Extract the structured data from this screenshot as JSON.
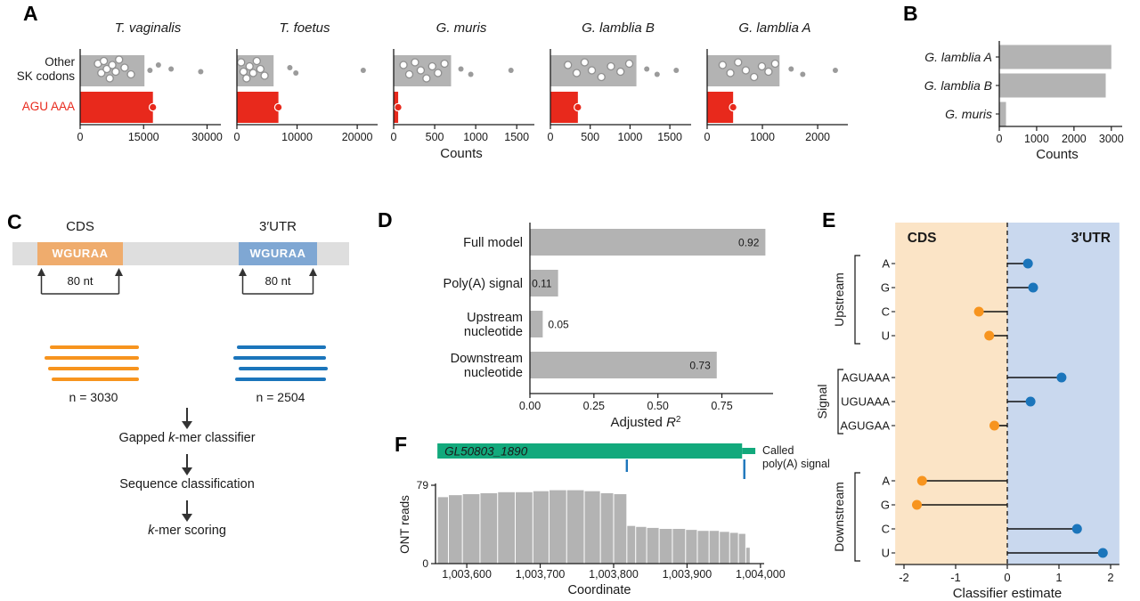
{
  "panel_labels": {
    "a": "A",
    "b": "B",
    "c": "C",
    "d": "D",
    "e": "E",
    "f": "F"
  },
  "colors": {
    "red": "#E8291C",
    "gray_bar": "#B3B3B3",
    "green_species": "#00A651",
    "blue": "#1B75BB",
    "orange": "#F7941E",
    "orange_bg": "#FBE4C6",
    "blue_bg": "#C9D8EE",
    "gene_green": "#12A97C",
    "axis": "#1a1a1a",
    "point_gray": "#9b9b9b"
  },
  "panel_c": {
    "cds_label": "CDS",
    "utr_label": "3′UTR",
    "motif": "WGURAA",
    "dim_label": "80 nt",
    "n_cds": "n = 3030",
    "n_utr": "n = 2504",
    "steps": [
      {
        "pre": "Gapped ",
        "it": "k",
        "post": "-mer classifier"
      },
      {
        "pre": "",
        "it": "",
        "post": "Sequence classification"
      },
      {
        "pre": "",
        "it": "k",
        "post": "-mer scoring"
      }
    ]
  },
  "chart_data": [
    {
      "panel": "A",
      "type": "bar",
      "description": "Counts of AGU AAA vs other SK codons per species; bars with jittered codon points",
      "xlabel": "Counts",
      "row_label_line1": "Other",
      "row_label_line2": "SK codons",
      "row_label_red": "AGU AAA",
      "species": [
        {
          "name": "T. vaginalis",
          "group": "green",
          "xmax": 32000,
          "xticks": [
            0,
            15000,
            30000
          ],
          "other_sk_total": 15200,
          "agu_aaa": 17200,
          "open_points": [
            [
              4200,
              0.25
            ],
            [
              5000,
              0.6
            ],
            [
              5600,
              0.15
            ],
            [
              6300,
              0.45
            ],
            [
              7000,
              0.8
            ],
            [
              7600,
              0.3
            ],
            [
              8400,
              0.55
            ],
            [
              9200,
              0.1
            ],
            [
              10500,
              0.4
            ],
            [
              12000,
              0.65
            ]
          ],
          "solid_points": [
            [
              16500,
              0.5
            ],
            [
              18500,
              0.3
            ],
            [
              21500,
              0.45
            ],
            [
              28500,
              0.55
            ]
          ]
        },
        {
          "name": "T. foetus",
          "group": "green",
          "xmax": 22500,
          "xticks": [
            0,
            10000,
            20000
          ],
          "other_sk_total": 6100,
          "agu_aaa": 6900,
          "open_points": [
            [
              700,
              0.2
            ],
            [
              1100,
              0.55
            ],
            [
              1600,
              0.8
            ],
            [
              2100,
              0.35
            ],
            [
              2700,
              0.6
            ],
            [
              3300,
              0.15
            ],
            [
              3900,
              0.45
            ],
            [
              4600,
              0.7
            ]
          ],
          "solid_points": [
            [
              8800,
              0.4
            ],
            [
              9800,
              0.6
            ],
            [
              21000,
              0.5
            ]
          ]
        },
        {
          "name": "G. muris",
          "group": "blue",
          "xmax": 1650,
          "xticks": [
            0,
            500,
            1000,
            1500
          ],
          "other_sk_total": 700,
          "agu_aaa": 55,
          "open_points": [
            [
              120,
              0.3
            ],
            [
              190,
              0.65
            ],
            [
              260,
              0.2
            ],
            [
              330,
              0.5
            ],
            [
              400,
              0.8
            ],
            [
              470,
              0.35
            ],
            [
              540,
              0.6
            ],
            [
              620,
              0.25
            ]
          ],
          "solid_points": [
            [
              820,
              0.45
            ],
            [
              940,
              0.65
            ],
            [
              1430,
              0.5
            ]
          ]
        },
        {
          "name": "G. lamblia B",
          "group": "blue",
          "xmax": 1700,
          "xticks": [
            0,
            500,
            1000,
            1500
          ],
          "other_sk_total": 1080,
          "agu_aaa": 345,
          "open_points": [
            [
              220,
              0.3
            ],
            [
              330,
              0.6
            ],
            [
              430,
              0.2
            ],
            [
              520,
              0.5
            ],
            [
              640,
              0.75
            ],
            [
              760,
              0.35
            ],
            [
              880,
              0.55
            ],
            [
              990,
              0.25
            ]
          ],
          "solid_points": [
            [
              1210,
              0.45
            ],
            [
              1340,
              0.65
            ],
            [
              1580,
              0.5
            ]
          ]
        },
        {
          "name": "G. lamblia A",
          "group": "blue",
          "xmax": 2450,
          "xticks": [
            0,
            1000,
            2000
          ],
          "other_sk_total": 1310,
          "agu_aaa": 470,
          "open_points": [
            [
              280,
              0.3
            ],
            [
              420,
              0.6
            ],
            [
              560,
              0.2
            ],
            [
              700,
              0.5
            ],
            [
              850,
              0.75
            ],
            [
              990,
              0.35
            ],
            [
              1110,
              0.55
            ],
            [
              1230,
              0.25
            ]
          ],
          "solid_points": [
            [
              1520,
              0.45
            ],
            [
              1730,
              0.65
            ],
            [
              2320,
              0.5
            ]
          ]
        }
      ]
    },
    {
      "panel": "B",
      "type": "bar",
      "categories": [
        "G. lamblia A",
        "G. lamblia B",
        "G. muris"
      ],
      "values": [
        3000,
        2850,
        180
      ],
      "xticks": [
        0,
        1000,
        2000,
        3000
      ],
      "xmax": 3100,
      "xlabel": "Counts"
    },
    {
      "panel": "D",
      "type": "bar",
      "categories": [
        "Full model",
        "Poly(A) signal",
        "Upstream nucleotide",
        "Downstream nucleotide"
      ],
      "category_lines": [
        [
          "Full model"
        ],
        [
          "Poly(A) signal"
        ],
        [
          "Upstream",
          "nucleotide"
        ],
        [
          "Downstream",
          "nucleotide"
        ]
      ],
      "values": [
        0.92,
        0.11,
        0.05,
        0.73
      ],
      "value_labels": [
        "0.92",
        "0.11",
        "0.05",
        "0.73"
      ],
      "label_inside": [
        true,
        true,
        false,
        true
      ],
      "xticks": [
        0,
        0.25,
        0.5,
        0.75
      ],
      "xtick_labels": [
        "0.00",
        "0.25",
        "0.50",
        "0.75"
      ],
      "xmax": 0.95,
      "xlabel_pre": "Adjusted ",
      "xlabel_italic": "R",
      "xlabel_sup": "2"
    },
    {
      "panel": "E",
      "type": "lollipop",
      "xlabel": "Classifier estimate",
      "xticks": [
        -2,
        -1,
        0,
        1,
        2
      ],
      "xlim": [
        -2.17,
        2.17
      ],
      "region_left": "CDS",
      "region_right": "3′UTR",
      "groups": [
        {
          "name": "Upstream",
          "items": [
            {
              "label": "A",
              "value": 0.4
            },
            {
              "label": "G",
              "value": 0.5
            },
            {
              "label": "C",
              "value": -0.55
            },
            {
              "label": "U",
              "value": -0.35
            }
          ]
        },
        {
          "name": "Signal",
          "items": [
            {
              "label": "AGUAAA",
              "value": 1.05
            },
            {
              "label": "UGUAAA",
              "value": 0.45
            },
            {
              "label": "AGUGAA",
              "value": -0.25
            }
          ]
        },
        {
          "name": "Downstream",
          "items": [
            {
              "label": "A",
              "value": -1.65
            },
            {
              "label": "G",
              "value": -1.75
            },
            {
              "label": "C",
              "value": 1.35
            },
            {
              "label": "U",
              "value": 1.85
            }
          ]
        }
      ]
    },
    {
      "panel": "F",
      "type": "coverage",
      "gene": "GL50803_1890",
      "called_line1": "Called",
      "called_line2": "poly(A) signal",
      "ylabel": "ONT reads",
      "ymax": 79,
      "ytick_labels": [
        "79",
        "0"
      ],
      "xlabel": "Coordinate",
      "xticks": [
        1003600,
        1003700,
        1003800,
        1003900,
        1004000
      ],
      "gene_span": [
        1003560,
        1003975,
        1003993
      ],
      "signals": [
        1003818,
        1003978
      ],
      "coverage": [
        [
          1003560,
          1003575,
          67
        ],
        [
          1003575,
          1003594,
          69
        ],
        [
          1003594,
          1003618,
          70
        ],
        [
          1003618,
          1003642,
          71
        ],
        [
          1003642,
          1003666,
          72
        ],
        [
          1003666,
          1003690,
          72
        ],
        [
          1003690,
          1003712,
          73
        ],
        [
          1003712,
          1003736,
          74
        ],
        [
          1003736,
          1003760,
          74
        ],
        [
          1003760,
          1003782,
          73
        ],
        [
          1003782,
          1003800,
          71
        ],
        [
          1003800,
          1003818,
          70
        ],
        [
          1003818,
          1003830,
          38
        ],
        [
          1003830,
          1003845,
          37
        ],
        [
          1003845,
          1003862,
          36
        ],
        [
          1003862,
          1003880,
          35
        ],
        [
          1003880,
          1003898,
          35
        ],
        [
          1003898,
          1003914,
          34
        ],
        [
          1003914,
          1003930,
          33
        ],
        [
          1003930,
          1003944,
          33
        ],
        [
          1003944,
          1003958,
          32
        ],
        [
          1003958,
          1003970,
          31
        ],
        [
          1003970,
          1003980,
          30
        ],
        [
          1003980,
          1003986,
          16
        ]
      ]
    }
  ]
}
